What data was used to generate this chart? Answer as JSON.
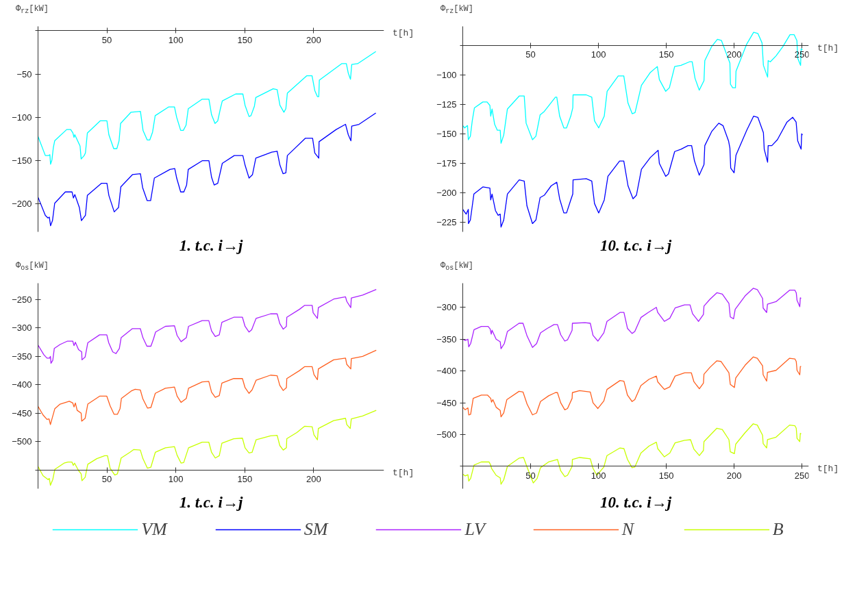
{
  "chart_data": [
    {
      "type": "line",
      "title": "1. t.c. i→j",
      "xlabel": "t[h]",
      "ylabel": "Φ$_{rz}$[kW]",
      "xlim": [
        0,
        251
      ],
      "ylim": [
        -232,
        5
      ],
      "xticks": [
        50,
        100,
        150,
        200
      ],
      "yticks": [
        -200,
        -150,
        -100,
        -50,
        {
          "value": 0,
          "label": null
        }
      ],
      "legend": "bottom",
      "series": [
        {
          "name": "VM",
          "color": "#00ffff",
          "x": [
            0,
            5.3,
            7.8,
            8.6,
            9.1,
            10.1,
            11.1,
            12.1,
            20.8,
            23.7,
            25.3,
            26.1,
            26.7,
            30.5,
            31.3,
            33.5,
            34.4,
            35.8,
            45.1,
            50,
            51.4,
            54.9,
            57.2,
            58.8,
            59.9,
            67.5,
            74.3,
            76.2,
            79.2,
            81.1,
            83.1,
            85,
            94.7,
            99,
            100.6,
            103.5,
            105.4,
            107.4,
            109,
            119.1,
            124,
            125.9,
            128.4,
            130.4,
            132.3,
            133.7,
            143.4,
            148.6,
            150.2,
            153.1,
            154.5,
            157,
            158,
            170.6,
            173.5,
            175.5,
            178.4,
            179.8,
            180.9,
            194.9,
            198.8,
            200.8,
            202.7,
            203.7,
            204.1,
            220.3,
            223.7,
            225.1,
            226.7,
            227.6,
            231.9,
            245.1
          ],
          "values": [
            -122,
            -144,
            -144,
            -143,
            -154,
            -149,
            -135,
            -127,
            -114,
            -114,
            -118,
            -123,
            -120,
            -133,
            -148,
            -144,
            -141,
            -118,
            -104,
            -104,
            -120,
            -136,
            -136,
            -127,
            -107,
            -94,
            -93,
            -115,
            -126,
            -126,
            -117,
            -98,
            -88,
            -88,
            -100,
            -115,
            -115,
            -109,
            -90,
            -79,
            -79,
            -97,
            -107,
            -104,
            -90,
            -81,
            -73,
            -73,
            -86,
            -99,
            -98,
            -87,
            -77,
            -67,
            -68,
            -86,
            -94,
            -90,
            -72,
            -52,
            -52,
            -69,
            -76,
            -76,
            -57,
            -38,
            -38,
            -49,
            -56,
            -39,
            -38,
            -24
          ]
        },
        {
          "name": "SM",
          "color": "#0000ff",
          "x": [
            0,
            5.3,
            7.2,
            8.2,
            9.1,
            10.5,
            12.1,
            19.8,
            24.7,
            25.7,
            26.7,
            30,
            31.5,
            34.4,
            35.8,
            46.1,
            50,
            51.4,
            55.3,
            58.4,
            60.1,
            68.5,
            74.3,
            75.9,
            79.2,
            81.7,
            84.4,
            95.7,
            99.2,
            100.6,
            103.5,
            105.8,
            107.8,
            109,
            119.1,
            124,
            125.9,
            127.8,
            130.4,
            133.7,
            142.4,
            148.6,
            150.2,
            153.1,
            155.6,
            158,
            169.6,
            173.5,
            175.5,
            177.8,
            179.8,
            180.9,
            194,
            199.2,
            200.8,
            203.7,
            203.9,
            216.3,
            223.1,
            225.1,
            227,
            227.6,
            232.9,
            245.1
          ],
          "values": [
            -192,
            -213,
            -216,
            -215,
            -225,
            -219,
            -199,
            -186,
            -186,
            -193,
            -189,
            -204,
            -219,
            -213,
            -190,
            -176,
            -176,
            -190,
            -209,
            -204,
            -180,
            -166,
            -165,
            -181,
            -196,
            -196,
            -170,
            -160,
            -159,
            -170,
            -186,
            -186,
            -178,
            -160,
            -150,
            -150,
            -169,
            -178,
            -176,
            -153,
            -144,
            -144,
            -155,
            -170,
            -166,
            -147,
            -140,
            -139,
            -155,
            -165,
            -164,
            -144,
            -124,
            -124,
            -141,
            -147,
            -128,
            -114,
            -108,
            -120,
            -127,
            -110,
            -108,
            -95
          ]
        }
      ]
    },
    {
      "type": "line",
      "title": "10. t.c. i→j",
      "xlabel": "t[h]",
      "ylabel": "Φ$_{rz}$[kW]",
      "xlim": [
        0,
        255
      ],
      "ylim": [
        -233,
        -59
      ],
      "xticks": [
        50,
        100,
        150,
        200,
        250
      ],
      "yticks": [
        -225,
        -200,
        -175,
        -150,
        -125,
        -100,
        {
          "value": -75,
          "label": null
        }
      ],
      "legend": "bottom",
      "series": [
        {
          "name": "VM",
          "color": "#00ffff",
          "x": [
            0,
            1.4,
            3.5,
            4.1,
            5.6,
            7,
            8.6,
            14.8,
            17.9,
            20,
            20.6,
            21.6,
            23.5,
            25.5,
            27.6,
            28.2,
            30.2,
            32.9,
            41.6,
            45.3,
            46.7,
            51.4,
            53.9,
            57,
            60.1,
            68.3,
            69.3,
            71.4,
            74.5,
            76.5,
            79.6,
            81.1,
            81.3,
            91,
            95.1,
            97.1,
            100.2,
            104.3,
            106.4,
            114.6,
            118.7,
            121.8,
            124.9,
            127,
            131.7,
            138.3,
            143.4,
            144.9,
            149.6,
            152.3,
            156.2,
            160.9,
            167.1,
            169.1,
            171.2,
            174.3,
            177.8,
            178.4,
            183.5,
            187.7,
            190.7,
            194.9,
            196.9,
            197.3,
            199,
            201,
            201.4,
            209.3,
            214.4,
            217.5,
            220.6,
            221.6,
            224.7,
            225.1,
            226.7,
            230.9,
            236,
            241.2,
            244.2,
            246.3,
            246.9,
            249,
            249.4,
            250.4
          ],
          "values": [
            -143,
            -145,
            -143,
            -155,
            -152,
            -139,
            -128,
            -123,
            -123,
            -126,
            -135,
            -129,
            -142,
            -147,
            -147,
            -158,
            -151,
            -129,
            -118,
            -118,
            -141,
            -155,
            -152,
            -134,
            -131,
            -119,
            -119,
            -135,
            -145,
            -145,
            -135,
            -128,
            -117,
            -117,
            -119,
            -139,
            -145,
            -135,
            -114,
            -101,
            -101,
            -124,
            -133,
            -132,
            -109,
            -98,
            -93,
            -104,
            -114,
            -111,
            -93,
            -92,
            -89,
            -89,
            -103,
            -113,
            -105,
            -88,
            -76,
            -70,
            -71,
            -84,
            -90,
            -108,
            -111,
            -111,
            -97,
            -74,
            -64,
            -65,
            -73,
            -92,
            -102,
            -88,
            -89,
            -84,
            -76,
            -66,
            -66,
            -71,
            -86,
            -92,
            -78,
            -79
          ]
        },
        {
          "name": "SM",
          "color": "#0000ff",
          "x": [
            0,
            2.5,
            4.1,
            4.2,
            5.6,
            8.2,
            14.8,
            20,
            20.6,
            21.6,
            24.1,
            26.1,
            27.6,
            28.2,
            30.2,
            32.9,
            41.6,
            45.3,
            47.3,
            51.4,
            53.9,
            57,
            60.1,
            65.2,
            69.3,
            71.4,
            74.5,
            76.5,
            79.6,
            81.1,
            81.3,
            91,
            95.1,
            97.1,
            100.2,
            104.3,
            107,
            115.6,
            118.7,
            121.8,
            125.5,
            128,
            131.7,
            138.3,
            144,
            144.9,
            149.6,
            151.6,
            156.2,
            160.9,
            166,
            168.7,
            170.8,
            174.3,
            177.8,
            178.4,
            183.5,
            188.7,
            191.8,
            195.9,
            196.9,
            197.5,
            200,
            201.4,
            209.3,
            214.4,
            217.5,
            221.6,
            222.2,
            224.7,
            225.1,
            227.8,
            231.9,
            239,
            243.2,
            245.7,
            246.9,
            249.4,
            249.8,
            250.4
          ],
          "values": [
            -214,
            -218,
            -214,
            -226,
            -223,
            -201,
            -195,
            -196,
            -206,
            -201,
            -215,
            -219,
            -218,
            -229,
            -223,
            -201,
            -189,
            -190,
            -211,
            -226,
            -223,
            -204,
            -202,
            -194,
            -191,
            -205,
            -217,
            -217,
            -206,
            -201,
            -189,
            -188,
            -190,
            -209,
            -217,
            -206,
            -186,
            -173,
            -173,
            -194,
            -205,
            -202,
            -180,
            -170,
            -164,
            -175,
            -186,
            -184,
            -165,
            -163,
            -160,
            -160,
            -173,
            -185,
            -176,
            -160,
            -148,
            -141,
            -143,
            -156,
            -162,
            -179,
            -183,
            -168,
            -147,
            -135,
            -136,
            -149,
            -163,
            -174,
            -160,
            -160,
            -155,
            -140,
            -136,
            -140,
            -156,
            -163,
            -150,
            -151
          ]
        }
      ]
    },
    {
      "type": "line",
      "title": "1. t.c. i→j",
      "xlabel": "t[h]",
      "ylabel": "Φ$_{os}$[kW]",
      "xlim": [
        0,
        251
      ],
      "ylim": [
        -583,
        -221
      ],
      "xticks": [
        50,
        100,
        150,
        200
      ],
      "yticks": [
        {
          "value": -550,
          "label": null
        },
        -500,
        -450,
        -400,
        -350,
        -300,
        -250
      ],
      "legend": "bottom",
      "series": [
        {
          "name": "LV",
          "color": "#aa22ff",
          "x": [
            0,
            4.2,
            6.5,
            8.4,
            9,
            9.4,
            10.7,
            11.8,
            16,
            21.4,
            25.2,
            26.1,
            27.1,
            29.4,
            31.7,
            31.9,
            34.2,
            36.1,
            44.7,
            49.9,
            51.3,
            54.2,
            56.5,
            59,
            60.3,
            68.5,
            74.2,
            76.1,
            79,
            81.9,
            83.8,
            85.3,
            92.4,
            99,
            100.9,
            103.8,
            107.6,
            109.2,
            119.1,
            123.9,
            125.9,
            128.6,
            131.5,
            133.4,
            142,
            148.3,
            150.2,
            153.1,
            155,
            158.2,
            168.7,
            173.5,
            175.4,
            177.9,
            180.2,
            180.5,
            189.7,
            193.5,
            198.9,
            199.6,
            202.7,
            203.4,
            214.5,
            223.1,
            224,
            226.9,
            227.3,
            235.5,
            245.4
          ],
          "values": [
            -330,
            -347,
            -353,
            -353,
            -350,
            -362,
            -357,
            -336,
            -329,
            -323,
            -323,
            -331,
            -325,
            -338,
            -342,
            -356,
            -351,
            -326,
            -312,
            -312,
            -326,
            -342,
            -345,
            -336,
            -317,
            -301,
            -301,
            -317,
            -332,
            -332,
            -319,
            -307,
            -297,
            -296,
            -313,
            -324,
            -317,
            -297,
            -287,
            -287,
            -305,
            -315,
            -312,
            -290,
            -281,
            -281,
            -297,
            -307,
            -303,
            -283,
            -275,
            -275,
            -292,
            -302,
            -297,
            -281,
            -267,
            -260,
            -260,
            -273,
            -283,
            -264,
            -249,
            -245,
            -253,
            -264,
            -247,
            -242,
            -232
          ]
        },
        {
          "name": "N",
          "color": "#ff6020",
          "x": [
            0,
            3.6,
            6.5,
            8,
            9,
            12.2,
            16,
            22.7,
            25.2,
            26.1,
            27.1,
            28.4,
            31.3,
            31.7,
            34.2,
            36.1,
            44.7,
            49.9,
            52.3,
            55.2,
            57.6,
            59.5,
            60.5,
            67.6,
            70.5,
            74.2,
            76.1,
            79.4,
            81.9,
            85.1,
            92.4,
            99,
            100.9,
            103.8,
            107.6,
            109.2,
            119.1,
            123.9,
            125.9,
            128.6,
            131.5,
            133.4,
            142,
            148.3,
            150.2,
            153.1,
            155.3,
            158.2,
            168.7,
            173.5,
            175.4,
            177.9,
            180.2,
            180.5,
            189.7,
            193.5,
            198.9,
            200.2,
            202.7,
            203.4,
            214.5,
            223.1,
            224,
            226.9,
            227.3,
            235.5,
            245.4
          ],
          "values": [
            -438,
            -453,
            -461,
            -460,
            -470,
            -442,
            -434,
            -429,
            -432,
            -439,
            -432,
            -445,
            -450,
            -464,
            -459,
            -434,
            -420,
            -420,
            -437,
            -452,
            -452,
            -442,
            -424,
            -411,
            -408,
            -409,
            -425,
            -441,
            -440,
            -415,
            -406,
            -404,
            -420,
            -431,
            -424,
            -406,
            -395,
            -394,
            -413,
            -422,
            -419,
            -397,
            -389,
            -389,
            -405,
            -415,
            -409,
            -392,
            -383,
            -384,
            -401,
            -410,
            -405,
            -389,
            -375,
            -368,
            -368,
            -382,
            -391,
            -372,
            -356,
            -353,
            -364,
            -372,
            -354,
            -350,
            -339
          ]
        },
        {
          "name": "B",
          "color": "#c8ff00",
          "x": [
            0,
            3.6,
            7.3,
            8.2,
            9,
            10.7,
            12.2,
            18.9,
            21.8,
            24.6,
            25.6,
            26.5,
            29.4,
            31.3,
            31.9,
            34.2,
            36.1,
            42.7,
            48.4,
            50.4,
            52.3,
            55.7,
            57.6,
            60.3,
            66.6,
            69.5,
            74.2,
            76.1,
            79.4,
            81.9,
            85.1,
            92.4,
            99,
            100.9,
            103.8,
            105.7,
            109.2,
            119.1,
            123.9,
            125.9,
            128.6,
            131.5,
            133.4,
            142,
            148.3,
            150.2,
            153.1,
            155.3,
            158.2,
            168.7,
            173.5,
            175.4,
            177.9,
            180.2,
            180.5,
            187.8,
            193.5,
            198.9,
            200.2,
            202.7,
            203.4,
            214.5,
            223.1,
            224,
            226.5,
            227.3,
            235.5,
            245.4
          ],
          "values": [
            -544,
            -560,
            -567,
            -565,
            -577,
            -567,
            -549,
            -538,
            -536,
            -536,
            -542,
            -538,
            -551,
            -557,
            -569,
            -563,
            -540,
            -530,
            -525,
            -525,
            -547,
            -559,
            -557,
            -529,
            -519,
            -514,
            -515,
            -530,
            -547,
            -545,
            -519,
            -511,
            -509,
            -524,
            -538,
            -537,
            -511,
            -501,
            -501,
            -519,
            -529,
            -525,
            -503,
            -495,
            -494,
            -511,
            -520,
            -519,
            -497,
            -490,
            -489,
            -507,
            -515,
            -511,
            -495,
            -484,
            -473,
            -474,
            -488,
            -497,
            -477,
            -463,
            -459,
            -470,
            -477,
            -460,
            -455,
            -445
          ]
        }
      ]
    },
    {
      "type": "line",
      "title": "10. t.c. i→j",
      "xlabel": "t[h]",
      "ylabel": "Φ$_{os}$[kW]",
      "xlim": [
        0,
        255
      ],
      "ylim": [
        -585,
        -262
      ],
      "xticks": [
        50,
        100,
        150,
        200,
        250
      ],
      "yticks": [
        {
          "value": -550,
          "label": null
        },
        -500,
        -450,
        -400,
        -350,
        -300
      ],
      "legend": "bottom",
      "series": [
        {
          "name": "LV",
          "color": "#aa22ff",
          "x": [
            0,
            1.8,
            3.8,
            4.4,
            5.8,
            8.3,
            13.7,
            18.7,
            20.2,
            21,
            21.6,
            24.6,
            27.6,
            28.2,
            30.6,
            32.9,
            41.5,
            44.4,
            47.4,
            51.4,
            54.4,
            57.3,
            62.3,
            67.3,
            69.8,
            72.2,
            75.2,
            77.2,
            80.6,
            80.8,
            90.1,
            94,
            96,
            99.6,
            104,
            106.3,
            115.9,
            118.8,
            121.4,
            124.8,
            126.8,
            131.3,
            136.7,
            142.7,
            143.7,
            148.6,
            152.6,
            156.5,
            163.5,
            167.5,
            169.4,
            173.8,
            177.4,
            177.8,
            182.3,
            187.3,
            191.3,
            196.2,
            197.2,
            199.6,
            200.8,
            208.1,
            214.1,
            217.1,
            221,
            221.4,
            224,
            224.6,
            230.9,
            240.9,
            244.8,
            245.8,
            246.4,
            248.4,
            248.8,
            249.4
          ],
          "values": [
            -350,
            -352,
            -350,
            -362,
            -357,
            -335,
            -330,
            -330,
            -334,
            -342,
            -336,
            -350,
            -354,
            -365,
            -357,
            -338,
            -325,
            -325,
            -345,
            -363,
            -357,
            -340,
            -333,
            -327,
            -327,
            -343,
            -353,
            -351,
            -336,
            -325,
            -324,
            -325,
            -344,
            -353,
            -340,
            -322,
            -308,
            -308,
            -333,
            -341,
            -338,
            -316,
            -308,
            -300,
            -308,
            -322,
            -317,
            -301,
            -296,
            -296,
            -310,
            -322,
            -311,
            -298,
            -287,
            -277,
            -279,
            -294,
            -315,
            -318,
            -303,
            -282,
            -270,
            -272,
            -286,
            -301,
            -308,
            -295,
            -291,
            -273,
            -273,
            -277,
            -289,
            -299,
            -285,
            -286
          ]
        },
        {
          "name": "N",
          "color": "#ff6020",
          "x": [
            0,
            1.8,
            3.8,
            4.4,
            5.8,
            7.7,
            13.7,
            18.3,
            20.6,
            21.2,
            22.2,
            24.6,
            27.6,
            28.2,
            30.2,
            32.5,
            41.5,
            44.4,
            47.4,
            51.4,
            54.4,
            57.3,
            63.3,
            68.3,
            69.8,
            72.2,
            75.2,
            77.2,
            80.6,
            80.8,
            86.1,
            94,
            96,
            99.6,
            104,
            106.3,
            115.9,
            118.8,
            121.4,
            124.8,
            126.8,
            131.3,
            137.3,
            142.7,
            143.7,
            148.6,
            152.6,
            156.5,
            163.5,
            168.5,
            170.4,
            174.4,
            177.4,
            177.8,
            182.3,
            187.3,
            190.3,
            196.2,
            197.2,
            200.2,
            201.2,
            208.1,
            214.1,
            217.1,
            221,
            221.4,
            224,
            224.6,
            230.9,
            240.9,
            244.8,
            245.8,
            246.4,
            248.4,
            248.8,
            249.4
          ],
          "values": [
            -457,
            -461,
            -458,
            -469,
            -468,
            -443,
            -438,
            -438,
            -443,
            -449,
            -445,
            -457,
            -462,
            -472,
            -466,
            -445,
            -432,
            -433,
            -452,
            -469,
            -466,
            -448,
            -439,
            -434,
            -434,
            -450,
            -461,
            -459,
            -443,
            -434,
            -431,
            -433,
            -450,
            -459,
            -447,
            -429,
            -415,
            -416,
            -438,
            -448,
            -445,
            -423,
            -413,
            -408,
            -417,
            -429,
            -425,
            -408,
            -403,
            -403,
            -417,
            -428,
            -419,
            -405,
            -394,
            -384,
            -385,
            -403,
            -421,
            -426,
            -411,
            -391,
            -378,
            -380,
            -392,
            -406,
            -416,
            -402,
            -399,
            -380,
            -381,
            -385,
            -399,
            -406,
            -393,
            -393
          ]
        },
        {
          "name": "B",
          "color": "#c8ff00",
          "x": [
            0,
            1.8,
            3.8,
            4.4,
            5.8,
            8.3,
            13.7,
            19.4,
            20.6,
            21.2,
            24.6,
            27.6,
            28.2,
            30.2,
            32.9,
            41.5,
            44.8,
            47.4,
            52,
            54.8,
            57.3,
            63.3,
            69.8,
            72.2,
            75.2,
            77.2,
            80.6,
            80.8,
            86.1,
            94,
            96,
            98.8,
            104,
            106.3,
            115.9,
            118.8,
            121.4,
            124.8,
            126.8,
            131.3,
            137.3,
            142.7,
            143.7,
            148.6,
            152.6,
            156.5,
            163.5,
            167.9,
            170.4,
            174.4,
            177.4,
            177.8,
            182.3,
            187.3,
            191.3,
            196.2,
            197.2,
            200.2,
            201.2,
            208.1,
            214.1,
            217.1,
            221,
            221.4,
            224,
            224.6,
            230.9,
            240.9,
            244.8,
            245.8,
            246.4,
            248.4,
            248.8,
            249.4
          ],
          "values": [
            -562,
            -565,
            -563,
            -573,
            -569,
            -548,
            -543,
            -543,
            -548,
            -553,
            -564,
            -568,
            -578,
            -571,
            -550,
            -537,
            -536,
            -551,
            -576,
            -569,
            -552,
            -543,
            -539,
            -557,
            -566,
            -564,
            -550,
            -539,
            -536,
            -538,
            -553,
            -564,
            -551,
            -533,
            -521,
            -522,
            -539,
            -552,
            -551,
            -529,
            -518,
            -512,
            -522,
            -535,
            -529,
            -513,
            -509,
            -508,
            -523,
            -533,
            -525,
            -511,
            -501,
            -490,
            -492,
            -508,
            -527,
            -530,
            -515,
            -497,
            -483,
            -485,
            -501,
            -514,
            -521,
            -508,
            -504,
            -485,
            -486,
            -490,
            -506,
            -511,
            -498,
            -499
          ]
        }
      ]
    }
  ]
}
